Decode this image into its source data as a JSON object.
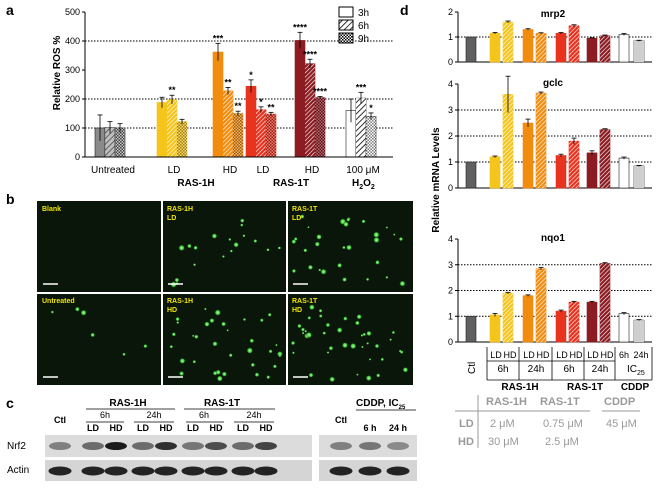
{
  "panels": {
    "a": "a",
    "b": "b",
    "c": "c",
    "d": "d"
  },
  "colors": {
    "untreated": "#8a8a8a",
    "ctl": "#606060",
    "ras1h_ld": "#f5c51c",
    "ras1h_hd": "#f28c0f",
    "ras1t_ld": "#e8331f",
    "ras1t_hd": "#8c1c22",
    "h2o2": "#ffffff"
  },
  "chart_data": [
    {
      "type": "bar",
      "panel": "a",
      "ylabel": "Relative ROS %",
      "ylim": [
        0,
        500
      ],
      "yticks": [
        "0",
        "100",
        "200",
        "300",
        "400",
        "500"
      ],
      "ref_lines": [
        100,
        200,
        400
      ],
      "legend": {
        "position": "top-right",
        "entries": [
          "3h",
          "6h",
          "9h"
        ]
      },
      "series_names": [
        "3h",
        "6h",
        "9h"
      ],
      "groups": [
        {
          "label": "Untreated",
          "color": "untreated",
          "values": [
            100,
            102,
            100
          ],
          "errors": [
            45,
            20,
            15
          ],
          "stars": [
            "",
            "",
            ""
          ]
        },
        {
          "label": "LD",
          "color": "ras1h_ld",
          "values": [
            188,
            198,
            122
          ],
          "errors": [
            18,
            15,
            8
          ],
          "stars": [
            "",
            "**",
            ""
          ]
        },
        {
          "label": "HD",
          "color": "ras1h_hd",
          "values": [
            362,
            228,
            150
          ],
          "errors": [
            30,
            12,
            8
          ],
          "stars": [
            "***",
            "**",
            "**"
          ]
        },
        {
          "label": "LD",
          "color": "ras1t_ld",
          "values": [
            244,
            163,
            148
          ],
          "errors": [
            22,
            10,
            6
          ],
          "stars": [
            "*",
            "*",
            "**"
          ]
        },
        {
          "label": "HD",
          "color": "ras1t_hd",
          "values": [
            402,
            322,
            205
          ],
          "errors": [
            28,
            15,
            4
          ],
          "stars": [
            "****",
            "****",
            "****"
          ]
        },
        {
          "label": "100 μM",
          "color": "h2o2",
          "values": [
            160,
            203,
            140
          ],
          "errors": [
            40,
            20,
            12
          ],
          "stars": [
            "",
            "***",
            "*"
          ]
        }
      ],
      "group_labels": {
        "ras1h": "RAS-1H",
        "ras1t": "RAS-1T",
        "h2o2": "H",
        "h2o2_sub": "2",
        "h2o2_end": "O",
        "h2o2_sub2": "2"
      }
    },
    {
      "type": "bar",
      "panel": "d",
      "ylabel": "Relative mRNA Levels",
      "subplots": [
        {
          "title": "mrp2",
          "ylim": [
            0,
            2
          ],
          "yticks": [
            "0",
            "1",
            "2"
          ],
          "ref_lines": [
            1
          ],
          "values": [
            1.0,
            1.15,
            1.6,
            1.3,
            1.15,
            1.15,
            1.45,
            0.95,
            1.05,
            1.1,
            0.85
          ],
          "errors": [
            0,
            0.03,
            0.04,
            0.03,
            0.02,
            0.03,
            0.04,
            0.02,
            0.03,
            0.04,
            0.02
          ]
        },
        {
          "title": "gclc",
          "ylim": [
            0,
            4
          ],
          "yticks": [
            "0",
            "1",
            "2",
            "3",
            "4"
          ],
          "ref_lines": [
            1,
            2,
            3
          ],
          "values": [
            1.0,
            1.2,
            3.6,
            2.5,
            3.65,
            1.25,
            1.8,
            1.35,
            2.25,
            1.15,
            0.85
          ],
          "errors": [
            0,
            0.03,
            0.7,
            0.15,
            0.04,
            0.05,
            0.12,
            0.08,
            0.03,
            0.04,
            0.02
          ]
        },
        {
          "title": "nqo1",
          "ylim": [
            0,
            4
          ],
          "yticks": [
            "0",
            "1",
            "2",
            "3",
            "4"
          ],
          "ref_lines": [
            1,
            2,
            3
          ],
          "values": [
            1.0,
            1.05,
            1.9,
            1.8,
            2.85,
            1.2,
            1.55,
            1.55,
            3.05,
            1.1,
            0.85
          ],
          "errors": [
            0,
            0.06,
            0.03,
            0.03,
            0.05,
            0.04,
            0.03,
            0.03,
            0.03,
            0.04,
            0.02
          ]
        }
      ],
      "bar_colors": [
        "ctl",
        "ras1h_ld",
        "ras1h_ld",
        "ras1h_hd",
        "ras1h_hd",
        "ras1t_ld",
        "ras1t_ld",
        "ras1t_hd",
        "ras1t_hd",
        "h2o2",
        "h2o2"
      ],
      "bar_hatched": [
        false,
        false,
        true,
        false,
        true,
        false,
        true,
        false,
        true,
        false,
        true
      ],
      "xlabels": {
        "ctl": "Ctl",
        "ld": "LD",
        "hd": "HD",
        "h6": "6h",
        "h24": "24h",
        "ic": "IC",
        "ic_sub": "25",
        "ras1h": "RAS-1H",
        "ras1t": "RAS-1T",
        "cddp": "CDDP"
      }
    }
  ],
  "micrographs": {
    "blank": "Blank",
    "ras1h_ld_1": "RAS-1H",
    "ras1h_ld_2": "LD",
    "ras1t_ld_1": "RAS-1T",
    "ras1t_ld_2": "LD",
    "untreated": "Untreated",
    "ras1h_hd_1": "RAS-1H",
    "ras1h_hd_2": "HD",
    "ras1t_hd_1": "RAS-1T",
    "ras1t_hd_2": "HD"
  },
  "western": {
    "ras1h": "RAS-1H",
    "ras1t": "RAS-1T",
    "cddp": "CDDP, IC",
    "cddp_sub": "25",
    "ctl": "Ctl",
    "h6": "6h",
    "h24": "24h",
    "h6s": "6 h",
    "h24s": "24 h",
    "ld": "LD",
    "hd": "HD",
    "nrf2": "Nrf2",
    "actin": "Actin"
  },
  "dose_table": {
    "columns": [
      "RAS-1H",
      "RAS-1T",
      "CDDP"
    ],
    "rows": [
      {
        "label": "LD",
        "values": [
          "2 μM",
          "0.75 μM",
          "45 μM"
        ]
      },
      {
        "label": "HD",
        "values": [
          "30 μM",
          "2.5 μM",
          ""
        ]
      }
    ]
  }
}
